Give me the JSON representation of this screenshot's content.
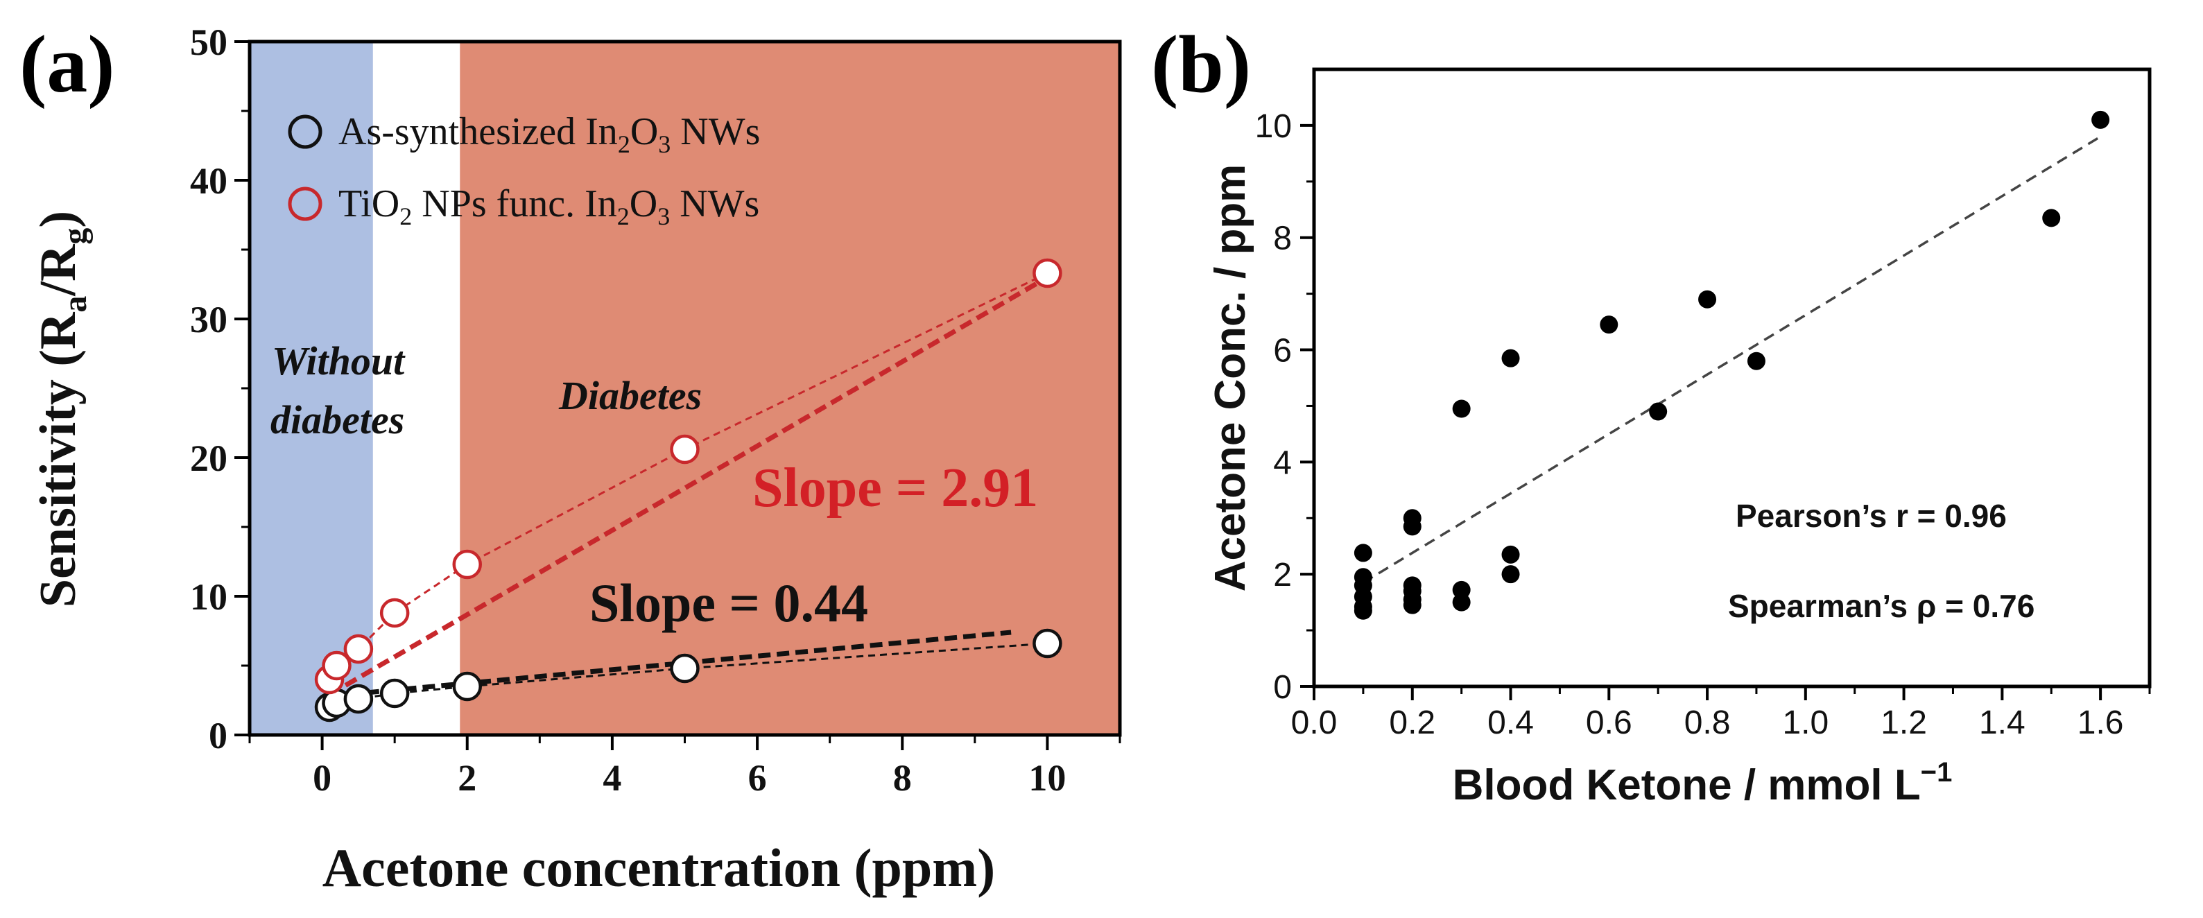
{
  "chart_data": [
    {
      "panel_label": "(a)",
      "type": "scatter",
      "title": "",
      "xlabel": "Acetone concentration (ppm)",
      "ylabel_parts": [
        "Sensitivity (R",
        "a",
        "/R",
        "g",
        ")"
      ],
      "xlim": [
        -1,
        11
      ],
      "ylim": [
        0,
        50
      ],
      "xticks": [
        0,
        2,
        4,
        6,
        8,
        10
      ],
      "yticks": [
        0,
        10,
        20,
        30,
        40,
        50
      ],
      "regions": [
        {
          "name": "without-diabetes",
          "x_range": [
            -1,
            0.7
          ],
          "color": "#adbfe2"
        },
        {
          "name": "diabetes",
          "x_range": [
            1.9,
            11
          ],
          "color": "#df8b74"
        }
      ],
      "annotations": {
        "without_line1": "Without",
        "without_line2": "diabetes",
        "diabetes": "Diabetes",
        "slope_red": "Slope = 2.91",
        "slope_black": "Slope = 0.44"
      },
      "legend": {
        "placement": "top-left",
        "entries": [
          {
            "parts": [
              "As-synthesized In",
              "2",
              "O",
              "3",
              " NWs"
            ],
            "color": "#111111"
          },
          {
            "parts": [
              "TiO",
              "2",
              " NPs func. In",
              "2",
              "O",
              "3",
              " NWs"
            ],
            "color": "#c8282c"
          }
        ]
      },
      "series": [
        {
          "name": "As-synthesized In2O3 NWs",
          "color": "#111111",
          "x": [
            0.1,
            0.2,
            0.5,
            1,
            2,
            5,
            10
          ],
          "y": [
            2.0,
            2.3,
            2.6,
            3.0,
            3.5,
            4.8,
            6.6
          ],
          "fit_line": {
            "x": [
              0.1,
              9.5
            ],
            "y": [
              2.8,
              7.4
            ]
          }
        },
        {
          "name": "TiO2 NPs func. In2O3 NWs",
          "color": "#c8282c",
          "x": [
            0.1,
            0.2,
            0.5,
            1,
            2,
            5,
            10
          ],
          "y": [
            4.0,
            5.0,
            6.2,
            8.8,
            12.3,
            20.6,
            33.3
          ],
          "fit_line": {
            "x": [
              0.1,
              10
            ],
            "y": [
              2.9,
              33.0
            ]
          }
        }
      ]
    },
    {
      "panel_label": "(b)",
      "type": "scatter",
      "title": "",
      "xlabel_parts": [
        "Blood Ketone / mmol L",
        "−1"
      ],
      "ylabel": "Acetone Conc. / ppm",
      "xlim": [
        0,
        1.7
      ],
      "ylim": [
        0,
        11
      ],
      "xticks": [
        "0.0",
        "0.2",
        "0.4",
        "0.6",
        "0.8",
        "1.0",
        "1.2",
        "1.4",
        "1.6"
      ],
      "yticks": [
        "0",
        "2",
        "4",
        "6",
        "8",
        "10"
      ],
      "stats": [
        "Pearson’s r = 0.96",
        "Spearman’s ρ = 0.76"
      ],
      "series": [
        {
          "name": "samples",
          "color": "#000000",
          "x": [
            0.1,
            0.1,
            0.1,
            0.1,
            0.1,
            0.1,
            0.2,
            0.2,
            0.2,
            0.2,
            0.2,
            0.2,
            0.3,
            0.3,
            0.3,
            0.4,
            0.4,
            0.4,
            0.6,
            0.7,
            0.8,
            0.9,
            1.5,
            1.6
          ],
          "y": [
            2.38,
            1.95,
            1.8,
            1.6,
            1.42,
            1.35,
            3.0,
            2.85,
            1.8,
            1.7,
            1.55,
            1.45,
            4.95,
            1.72,
            1.5,
            5.85,
            2.35,
            2.0,
            6.45,
            4.9,
            6.9,
            5.8,
            8.35,
            10.1
          ]
        }
      ],
      "fit_line": {
        "x": [
          0.1,
          1.6
        ],
        "y": [
          1.85,
          9.8
        ]
      }
    }
  ]
}
